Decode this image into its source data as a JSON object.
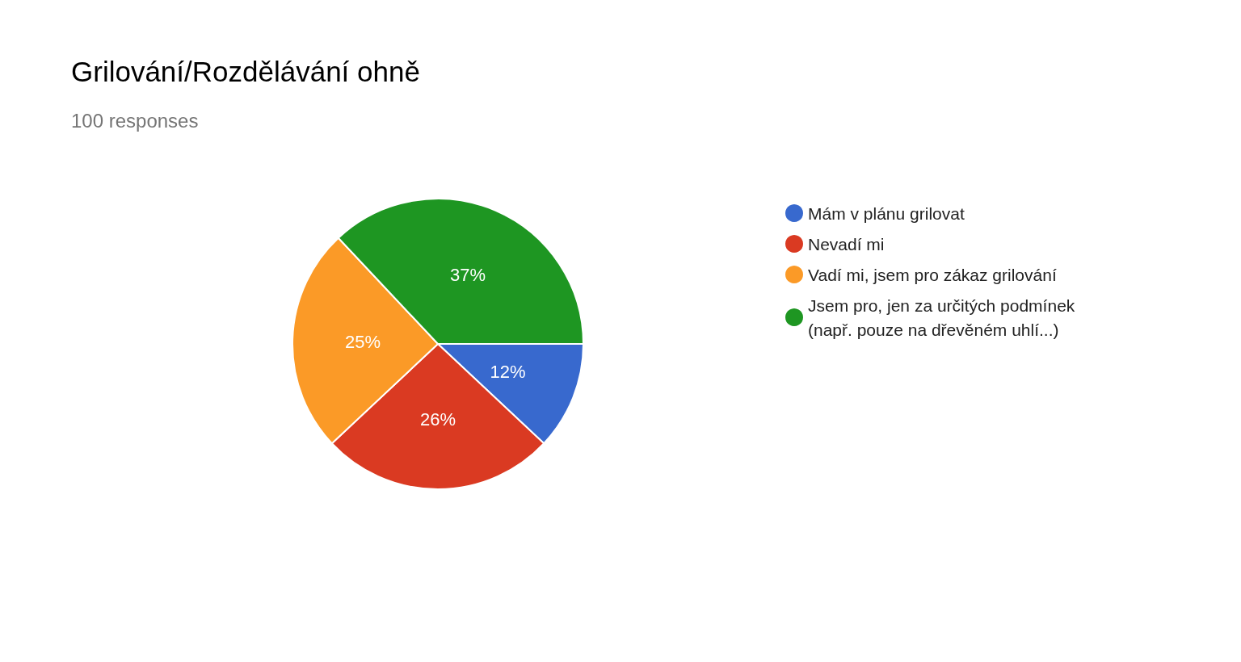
{
  "chart_data": {
    "type": "pie",
    "title": "Grilování/Rozdělávání ohně",
    "subtitle": "100 responses",
    "categories": [
      "Mám v plánu grilovat",
      "Nevadí mi",
      "Vadí mi, jsem pro zákaz grilování",
      "Jsem pro, jen za určitých podmínek (např. pouze na dřevěném uhlí...)"
    ],
    "values": [
      12,
      26,
      25,
      37
    ],
    "colors": [
      "#3869ce",
      "#da3a22",
      "#fb9a27",
      "#1e9622"
    ],
    "value_labels": [
      "12%",
      "26%",
      "25%",
      "37%"
    ],
    "legend": "right"
  }
}
